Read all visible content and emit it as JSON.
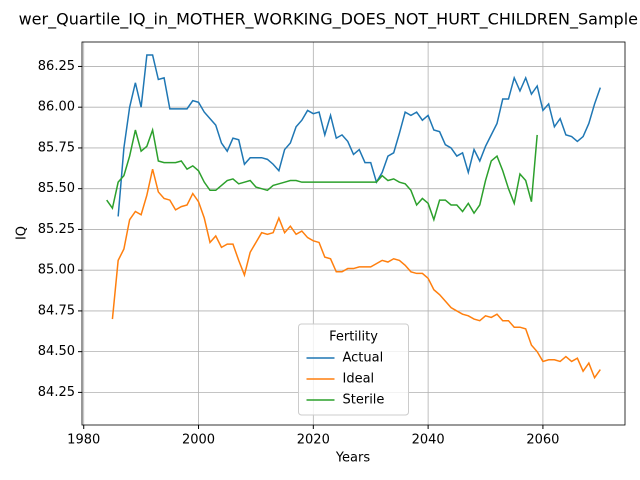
{
  "chart_data": {
    "type": "line",
    "title": "wer_Quartile_IQ_in_MOTHER_WORKING_DOES_NOT_HURT_CHILDREN_Sample",
    "xlabel": "Years",
    "ylabel": "IQ",
    "x": [
      1984,
      1985,
      1986,
      1987,
      1988,
      1989,
      1990,
      1991,
      1992,
      1993,
      1994,
      1995,
      1996,
      1997,
      1998,
      1999,
      2000,
      2001,
      2002,
      2003,
      2004,
      2005,
      2006,
      2007,
      2008,
      2009,
      2010,
      2011,
      2012,
      2013,
      2014,
      2015,
      2016,
      2017,
      2018,
      2019,
      2020,
      2021,
      2022,
      2023,
      2024,
      2025,
      2026,
      2027,
      2028,
      2029,
      2030,
      2031,
      2032,
      2033,
      2034,
      2035,
      2036,
      2037,
      2038,
      2039,
      2040,
      2041,
      2042,
      2043,
      2044,
      2045,
      2046,
      2047,
      2048,
      2049,
      2050,
      2051,
      2052,
      2053,
      2054,
      2055,
      2056,
      2057,
      2058,
      2059,
      2060,
      2061,
      2062,
      2063,
      2064,
      2065,
      2066,
      2067,
      2068,
      2069,
      2070
    ],
    "series": [
      {
        "name": "Actual",
        "color": "#1f77b4",
        "values": [
          null,
          null,
          85.33,
          85.75,
          86.0,
          86.15,
          86.0,
          86.32,
          86.32,
          86.17,
          86.18,
          85.99,
          85.99,
          85.99,
          85.99,
          86.04,
          86.03,
          85.97,
          85.93,
          85.89,
          85.78,
          85.73,
          85.81,
          85.8,
          85.65,
          85.69,
          85.69,
          85.69,
          85.68,
          85.65,
          85.61,
          85.74,
          85.78,
          85.88,
          85.92,
          85.98,
          85.96,
          85.97,
          85.83,
          85.95,
          85.81,
          85.83,
          85.79,
          85.71,
          85.74,
          85.66,
          85.66,
          85.54,
          85.6,
          85.7,
          85.72,
          85.84,
          85.97,
          85.95,
          85.97,
          85.92,
          85.95,
          85.86,
          85.85,
          85.77,
          85.75,
          85.7,
          85.72,
          85.6,
          85.74,
          85.67,
          85.76,
          85.83,
          85.9,
          86.05,
          86.05,
          86.18,
          86.1,
          86.18,
          86.08,
          86.13,
          85.98,
          86.02,
          85.88,
          85.93,
          85.83,
          85.82,
          85.79,
          85.82,
          85.9,
          86.02,
          86.12
        ]
      },
      {
        "name": "Ideal",
        "color": "#ff7f0e",
        "values": [
          null,
          84.7,
          85.06,
          85.13,
          85.31,
          85.36,
          85.34,
          85.46,
          85.62,
          85.48,
          85.44,
          85.43,
          85.37,
          85.39,
          85.4,
          85.47,
          85.42,
          85.32,
          85.17,
          85.21,
          85.14,
          85.16,
          85.16,
          85.06,
          84.97,
          85.11,
          85.17,
          85.23,
          85.22,
          85.23,
          85.32,
          85.23,
          85.27,
          85.22,
          85.24,
          85.2,
          85.18,
          85.17,
          85.08,
          85.07,
          84.99,
          84.99,
          85.01,
          85.01,
          85.02,
          85.02,
          85.02,
          85.04,
          85.06,
          85.05,
          85.07,
          85.06,
          85.03,
          84.99,
          84.98,
          84.98,
          84.95,
          84.88,
          84.85,
          84.81,
          84.77,
          84.75,
          84.73,
          84.72,
          84.7,
          84.69,
          84.72,
          84.71,
          84.73,
          84.69,
          84.69,
          84.65,
          84.65,
          84.64,
          84.54,
          84.5,
          84.44,
          84.45,
          84.45,
          84.44,
          84.47,
          84.44,
          84.46,
          84.38,
          84.43,
          84.34,
          84.39
        ]
      },
      {
        "name": "Sterile",
        "color": "#2ca02c",
        "values": [
          85.43,
          85.38,
          85.54,
          85.58,
          85.7,
          85.86,
          85.73,
          85.76,
          85.86,
          85.67,
          85.66,
          85.66,
          85.66,
          85.67,
          85.62,
          85.64,
          85.61,
          85.54,
          85.49,
          85.49,
          85.52,
          85.55,
          85.56,
          85.53,
          85.54,
          85.55,
          85.51,
          85.5,
          85.49,
          85.52,
          85.53,
          85.54,
          85.55,
          85.55,
          85.54,
          85.54,
          85.54,
          85.54,
          85.54,
          85.54,
          85.54,
          85.54,
          85.54,
          85.54,
          85.54,
          85.54,
          85.54,
          85.54,
          85.58,
          85.55,
          85.56,
          85.54,
          85.53,
          85.49,
          85.4,
          85.44,
          85.41,
          85.31,
          85.43,
          85.43,
          85.4,
          85.4,
          85.36,
          85.41,
          85.35,
          85.4,
          85.55,
          85.67,
          85.7,
          85.61,
          85.5,
          85.41,
          85.59,
          85.55,
          85.42,
          85.83,
          null,
          null,
          null,
          null,
          null,
          null,
          null,
          null,
          null,
          null,
          null
        ]
      }
    ],
    "legend_title": "Fertility",
    "legend_loc": "lower center",
    "xlim": [
      1979.7,
      2074.3
    ],
    "xticks": [
      1980,
      2000,
      2020,
      2040,
      2060
    ],
    "ylim": [
      84.05,
      86.4
    ],
    "yticks": [
      84.25,
      {
        "value": 84.5,
        "label": "84.50"
      },
      84.75,
      {
        "value": 85,
        "label": "85.00"
      },
      85.25,
      {
        "value": 85.5,
        "label": "85.50"
      },
      85.75,
      {
        "value": 86,
        "label": "86.00"
      },
      86.25
    ],
    "grid": true
  }
}
